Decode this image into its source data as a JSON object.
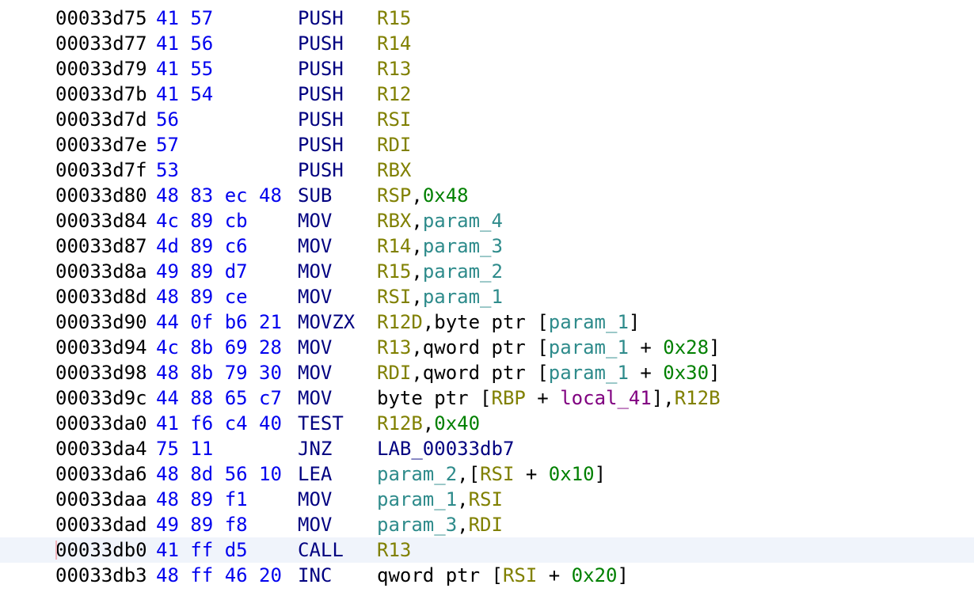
{
  "colors": {
    "address": "#000000",
    "bytes": "#0000ee",
    "mnemonic": "#000080",
    "register": "#808000",
    "parameter": "#2e8b8b",
    "scalar": "#008000",
    "local": "#800080",
    "selected_row": "#f0f4fb"
  },
  "listing": [
    {
      "address": "00033d75",
      "bytes": "41 57",
      "mnemonic": "PUSH",
      "operands": [
        [
          "reg",
          "R15"
        ]
      ]
    },
    {
      "address": "00033d77",
      "bytes": "41 56",
      "mnemonic": "PUSH",
      "operands": [
        [
          "reg",
          "R14"
        ]
      ]
    },
    {
      "address": "00033d79",
      "bytes": "41 55",
      "mnemonic": "PUSH",
      "operands": [
        [
          "reg",
          "R13"
        ]
      ]
    },
    {
      "address": "00033d7b",
      "bytes": "41 54",
      "mnemonic": "PUSH",
      "operands": [
        [
          "reg",
          "R12"
        ]
      ]
    },
    {
      "address": "00033d7d",
      "bytes": "56",
      "mnemonic": "PUSH",
      "operands": [
        [
          "reg",
          "RSI"
        ]
      ]
    },
    {
      "address": "00033d7e",
      "bytes": "57",
      "mnemonic": "PUSH",
      "operands": [
        [
          "reg",
          "RDI"
        ]
      ]
    },
    {
      "address": "00033d7f",
      "bytes": "53",
      "mnemonic": "PUSH",
      "operands": [
        [
          "reg",
          "RBX"
        ]
      ]
    },
    {
      "address": "00033d80",
      "bytes": "48 83 ec 48",
      "mnemonic": "SUB",
      "operands": [
        [
          "reg",
          "RSP"
        ],
        [
          "txt",
          ","
        ],
        [
          "num",
          "0x48"
        ]
      ]
    },
    {
      "address": "00033d84",
      "bytes": "4c 89 cb",
      "mnemonic": "MOV",
      "operands": [
        [
          "reg",
          "RBX"
        ],
        [
          "txt",
          ","
        ],
        [
          "param",
          "param_4"
        ]
      ]
    },
    {
      "address": "00033d87",
      "bytes": "4d 89 c6",
      "mnemonic": "MOV",
      "operands": [
        [
          "reg",
          "R14"
        ],
        [
          "txt",
          ","
        ],
        [
          "param",
          "param_3"
        ]
      ]
    },
    {
      "address": "00033d8a",
      "bytes": "49 89 d7",
      "mnemonic": "MOV",
      "operands": [
        [
          "reg",
          "R15"
        ],
        [
          "txt",
          ","
        ],
        [
          "param",
          "param_2"
        ]
      ]
    },
    {
      "address": "00033d8d",
      "bytes": "48 89 ce",
      "mnemonic": "MOV",
      "operands": [
        [
          "reg",
          "RSI"
        ],
        [
          "txt",
          ","
        ],
        [
          "param",
          "param_1"
        ]
      ]
    },
    {
      "address": "00033d90",
      "bytes": "44 0f b6 21",
      "mnemonic": "MOVZX",
      "operands": [
        [
          "reg",
          "R12D"
        ],
        [
          "txt",
          ",byte ptr ["
        ],
        [
          "param",
          "param_1"
        ],
        [
          "txt",
          "]"
        ]
      ]
    },
    {
      "address": "00033d94",
      "bytes": "4c 8b 69 28",
      "mnemonic": "MOV",
      "operands": [
        [
          "reg",
          "R13"
        ],
        [
          "txt",
          ",qword ptr ["
        ],
        [
          "param",
          "param_1"
        ],
        [
          "txt",
          " + "
        ],
        [
          "num",
          "0x28"
        ],
        [
          "txt",
          "]"
        ]
      ]
    },
    {
      "address": "00033d98",
      "bytes": "48 8b 79 30",
      "mnemonic": "MOV",
      "operands": [
        [
          "reg",
          "RDI"
        ],
        [
          "txt",
          ",qword ptr ["
        ],
        [
          "param",
          "param_1"
        ],
        [
          "txt",
          " + "
        ],
        [
          "num",
          "0x30"
        ],
        [
          "txt",
          "]"
        ]
      ]
    },
    {
      "address": "00033d9c",
      "bytes": "44 88 65 c7",
      "mnemonic": "MOV",
      "operands": [
        [
          "txt",
          "byte ptr ["
        ],
        [
          "reg",
          "RBP"
        ],
        [
          "txt",
          " + "
        ],
        [
          "local",
          "local_41"
        ],
        [
          "txt",
          "],"
        ],
        [
          "reg",
          "R12B"
        ]
      ]
    },
    {
      "address": "00033da0",
      "bytes": "41 f6 c4 40",
      "mnemonic": "TEST",
      "operands": [
        [
          "reg",
          "R12B"
        ],
        [
          "txt",
          ","
        ],
        [
          "num",
          "0x40"
        ]
      ]
    },
    {
      "address": "00033da4",
      "bytes": "75 11",
      "mnemonic": "JNZ",
      "operands": [
        [
          "lab",
          "LAB_00033db7"
        ]
      ]
    },
    {
      "address": "00033da6",
      "bytes": "48 8d 56 10",
      "mnemonic": "LEA",
      "operands": [
        [
          "param",
          "param_2"
        ],
        [
          "txt",
          ",["
        ],
        [
          "reg",
          "RSI"
        ],
        [
          "txt",
          " + "
        ],
        [
          "num",
          "0x10"
        ],
        [
          "txt",
          "]"
        ]
      ]
    },
    {
      "address": "00033daa",
      "bytes": "48 89 f1",
      "mnemonic": "MOV",
      "operands": [
        [
          "param",
          "param_1"
        ],
        [
          "txt",
          ","
        ],
        [
          "reg",
          "RSI"
        ]
      ]
    },
    {
      "address": "00033dad",
      "bytes": "49 89 f8",
      "mnemonic": "MOV",
      "operands": [
        [
          "param",
          "param_3"
        ],
        [
          "txt",
          ","
        ],
        [
          "reg",
          "RDI"
        ]
      ]
    },
    {
      "address": "00033db0",
      "bytes": "41 ff d5",
      "mnemonic": "CALL",
      "operands": [
        [
          "reg",
          "R13"
        ]
      ],
      "selected": true
    },
    {
      "address": "00033db3",
      "bytes": "48 ff 46 20",
      "mnemonic": "INC",
      "operands": [
        [
          "txt",
          "qword ptr ["
        ],
        [
          "reg",
          "RSI"
        ],
        [
          "txt",
          " + "
        ],
        [
          "num",
          "0x20"
        ],
        [
          "txt",
          "]"
        ]
      ]
    }
  ]
}
